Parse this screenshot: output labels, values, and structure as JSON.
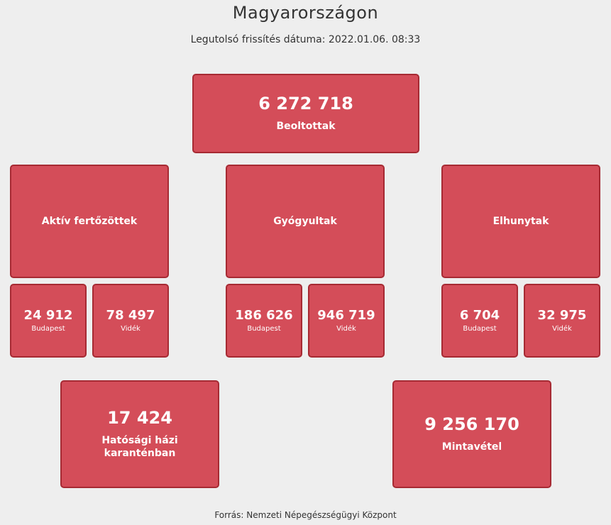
{
  "header": {
    "title": "Magyarországon",
    "subtitle": "Legutolsó frissítés dátuma: 2022.01.06. 08:33"
  },
  "vaccinated": {
    "value": "6 272 718",
    "label": "Beoltottak"
  },
  "groups": {
    "active": {
      "label": "Aktív fertőzöttek",
      "budapest": {
        "value": "24 912",
        "label": "Budapest"
      },
      "rural": {
        "value": "78 497",
        "label": "Vidék"
      }
    },
    "recovered": {
      "label": "Gyógyultak",
      "budapest": {
        "value": "186 626",
        "label": "Budapest"
      },
      "rural": {
        "value": "946 719",
        "label": "Vidék"
      }
    },
    "deceased": {
      "label": "Elhunytak",
      "budapest": {
        "value": "6 704",
        "label": "Budapest"
      },
      "rural": {
        "value": "32 975",
        "label": "Vidék"
      }
    }
  },
  "quarantine": {
    "value": "17 424",
    "label": "Hatósági házi karanténban"
  },
  "samples": {
    "value": "9 256 170",
    "label": "Mintavétel"
  },
  "footer": {
    "source": "Forrás: Nemzeti Népegészségügyi Központ"
  }
}
